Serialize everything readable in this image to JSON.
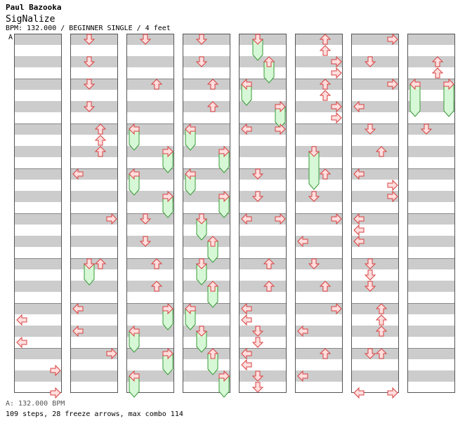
{
  "header": {
    "artist": "Paul Bazooka",
    "title": "SigNalize",
    "meta": "BPM: 132.000 / BEGINNER SINGLE / 4 feet",
    "marker": "A"
  },
  "footer": {
    "bpm_line": "A: 132.000 BPM",
    "stats_line": "109 steps, 28 freeze arrows, max combo 114"
  },
  "colors": {
    "stripe": "#cccccc",
    "tap": "#ffdede",
    "hold": "#d6f8d6"
  },
  "chart_data": {
    "type": "step_chart",
    "bpm": 132.0,
    "difficulty": "BEGINNER SINGLE",
    "feet": 4,
    "lanes": [
      "left",
      "down",
      "up",
      "right"
    ],
    "measures_per_column": 8,
    "columns": [
      {
        "notes": [
          {
            "m": 6,
            "b": 0.5,
            "d": "left"
          },
          {
            "m": 6,
            "b": 1.5,
            "d": "left"
          },
          {
            "m": 7,
            "b": 0.75,
            "d": "right"
          },
          {
            "m": 7,
            "b": 1.75,
            "d": "right"
          }
        ]
      },
      {
        "notes": [
          {
            "m": 0,
            "b": 0,
            "d": "down"
          },
          {
            "m": 0,
            "b": 1,
            "d": "down"
          },
          {
            "m": 1,
            "b": 0,
            "d": "down"
          },
          {
            "m": 1,
            "b": 1,
            "d": "down"
          },
          {
            "m": 2,
            "b": 0,
            "d": "up"
          },
          {
            "m": 2,
            "b": 0.5,
            "d": "up"
          },
          {
            "m": 2,
            "b": 1,
            "d": "up"
          },
          {
            "m": 3,
            "b": 0,
            "d": "left"
          },
          {
            "m": 4,
            "b": 0,
            "d": "right"
          },
          {
            "m": 5,
            "b": 0,
            "d": "down",
            "hold": 0.75
          },
          {
            "m": 5,
            "b": 0,
            "d": "up"
          },
          {
            "m": 6,
            "b": 0,
            "d": "left"
          },
          {
            "m": 6,
            "b": 1,
            "d": "left"
          },
          {
            "m": 7,
            "b": 0,
            "d": "right"
          }
        ]
      },
      {
        "notes": [
          {
            "m": 0,
            "b": 0,
            "d": "down"
          },
          {
            "m": 1,
            "b": 0,
            "d": "up"
          },
          {
            "m": 2,
            "b": 0,
            "d": "left",
            "hold": 0.75
          },
          {
            "m": 2,
            "b": 1,
            "d": "right",
            "hold": 0.75
          },
          {
            "m": 3,
            "b": 0,
            "d": "left",
            "hold": 0.75
          },
          {
            "m": 3,
            "b": 1,
            "d": "right",
            "hold": 0.75
          },
          {
            "m": 4,
            "b": 0,
            "d": "down"
          },
          {
            "m": 4,
            "b": 1,
            "d": "down"
          },
          {
            "m": 5,
            "b": 0,
            "d": "up"
          },
          {
            "m": 5,
            "b": 1,
            "d": "up"
          },
          {
            "m": 6,
            "b": 0,
            "d": "right",
            "hold": 0.75
          },
          {
            "m": 6,
            "b": 1,
            "d": "left",
            "hold": 0.75
          },
          {
            "m": 7,
            "b": 0,
            "d": "right",
            "hold": 0.75
          },
          {
            "m": 7,
            "b": 1,
            "d": "left",
            "hold": 0.75
          }
        ]
      },
      {
        "notes": [
          {
            "m": 0,
            "b": 0,
            "d": "down"
          },
          {
            "m": 0,
            "b": 1,
            "d": "down"
          },
          {
            "m": 1,
            "b": 0,
            "d": "up"
          },
          {
            "m": 1,
            "b": 1,
            "d": "up"
          },
          {
            "m": 2,
            "b": 0,
            "d": "left",
            "hold": 0.75
          },
          {
            "m": 2,
            "b": 1,
            "d": "right",
            "hold": 0.75
          },
          {
            "m": 3,
            "b": 0,
            "d": "left",
            "hold": 0.75
          },
          {
            "m": 3,
            "b": 1,
            "d": "right",
            "hold": 0.75
          },
          {
            "m": 4,
            "b": 0,
            "d": "down",
            "hold": 0.75
          },
          {
            "m": 4,
            "b": 1,
            "d": "up",
            "hold": 0.75
          },
          {
            "m": 5,
            "b": 0,
            "d": "down",
            "hold": 0.75
          },
          {
            "m": 5,
            "b": 1,
            "d": "up",
            "hold": 0.75
          },
          {
            "m": 6,
            "b": 0,
            "d": "left",
            "hold": 0.75
          },
          {
            "m": 6,
            "b": 1,
            "d": "down",
            "hold": 0.75
          },
          {
            "m": 7,
            "b": 0,
            "d": "up",
            "hold": 0.75
          },
          {
            "m": 7,
            "b": 1,
            "d": "right",
            "hold": 0.75
          }
        ]
      },
      {
        "notes": [
          {
            "m": 0,
            "b": 0,
            "d": "down",
            "hold": 0.75
          },
          {
            "m": 0,
            "b": 1,
            "d": "up",
            "hold": 0.75
          },
          {
            "m": 1,
            "b": 0,
            "d": "left",
            "hold": 0.75
          },
          {
            "m": 1,
            "b": 1,
            "d": "right",
            "hold": 0.75
          },
          {
            "m": 2,
            "b": 0,
            "d": "left"
          },
          {
            "m": 2,
            "b": 0,
            "d": "right"
          },
          {
            "m": 3,
            "b": 0,
            "d": "down"
          },
          {
            "m": 3,
            "b": 1,
            "d": "down"
          },
          {
            "m": 4,
            "b": 0,
            "d": "left"
          },
          {
            "m": 4,
            "b": 0,
            "d": "right"
          },
          {
            "m": 5,
            "b": 0,
            "d": "up"
          },
          {
            "m": 5,
            "b": 1,
            "d": "up"
          },
          {
            "m": 6,
            "b": 0,
            "d": "left"
          },
          {
            "m": 6,
            "b": 0.5,
            "d": "left"
          },
          {
            "m": 6,
            "b": 1,
            "d": "down"
          },
          {
            "m": 6,
            "b": 1.5,
            "d": "down"
          },
          {
            "m": 7,
            "b": 0,
            "d": "left"
          },
          {
            "m": 7,
            "b": 0.5,
            "d": "left"
          },
          {
            "m": 7,
            "b": 1,
            "d": "down"
          },
          {
            "m": 7,
            "b": 1.5,
            "d": "down"
          }
        ]
      },
      {
        "notes": [
          {
            "m": 0,
            "b": 0,
            "d": "up"
          },
          {
            "m": 0,
            "b": 0.5,
            "d": "up"
          },
          {
            "m": 0,
            "b": 1,
            "d": "right"
          },
          {
            "m": 0,
            "b": 1.5,
            "d": "right"
          },
          {
            "m": 1,
            "b": 0,
            "d": "up"
          },
          {
            "m": 1,
            "b": 0.5,
            "d": "up"
          },
          {
            "m": 1,
            "b": 1,
            "d": "right"
          },
          {
            "m": 1,
            "b": 1.5,
            "d": "right"
          },
          {
            "m": 2,
            "b": 1,
            "d": "down",
            "hold": 1.5
          },
          {
            "m": 3,
            "b": 0,
            "d": "up"
          },
          {
            "m": 3,
            "b": 1,
            "d": "down"
          },
          {
            "m": 4,
            "b": 0,
            "d": "right"
          },
          {
            "m": 4,
            "b": 1,
            "d": "left"
          },
          {
            "m": 5,
            "b": 0,
            "d": "down"
          },
          {
            "m": 5,
            "b": 1,
            "d": "up"
          },
          {
            "m": 6,
            "b": 0,
            "d": "right"
          },
          {
            "m": 6,
            "b": 1,
            "d": "left"
          },
          {
            "m": 7,
            "b": 0,
            "d": "up"
          },
          {
            "m": 7,
            "b": 1,
            "d": "left"
          }
        ]
      },
      {
        "notes": [
          {
            "m": 0,
            "b": 0,
            "d": "right"
          },
          {
            "m": 0,
            "b": 1,
            "d": "down"
          },
          {
            "m": 1,
            "b": 0,
            "d": "right"
          },
          {
            "m": 1,
            "b": 1,
            "d": "left"
          },
          {
            "m": 2,
            "b": 0,
            "d": "down"
          },
          {
            "m": 2,
            "b": 1,
            "d": "up"
          },
          {
            "m": 3,
            "b": 0,
            "d": "left"
          },
          {
            "m": 3,
            "b": 0.5,
            "d": "right"
          },
          {
            "m": 3,
            "b": 1,
            "d": "right"
          },
          {
            "m": 4,
            "b": 0,
            "d": "left"
          },
          {
            "m": 4,
            "b": 0.5,
            "d": "left"
          },
          {
            "m": 4,
            "b": 1,
            "d": "left"
          },
          {
            "m": 5,
            "b": 0,
            "d": "down"
          },
          {
            "m": 5,
            "b": 0.5,
            "d": "down"
          },
          {
            "m": 5,
            "b": 1,
            "d": "down"
          },
          {
            "m": 6,
            "b": 0,
            "d": "up"
          },
          {
            "m": 6,
            "b": 0.5,
            "d": "up"
          },
          {
            "m": 6,
            "b": 1,
            "d": "up"
          },
          {
            "m": 7,
            "b": 0,
            "d": "down"
          },
          {
            "m": 7,
            "b": 0,
            "d": "up"
          },
          {
            "m": 7,
            "b": 1.75,
            "d": "left"
          },
          {
            "m": 7,
            "b": 1.75,
            "d": "right"
          }
        ]
      },
      {
        "notes": [
          {
            "m": 0,
            "b": 1,
            "d": "up"
          },
          {
            "m": 0,
            "b": 1.5,
            "d": "up"
          },
          {
            "m": 1,
            "b": 0,
            "d": "left",
            "hold": 1.25
          },
          {
            "m": 1,
            "b": 0,
            "d": "right",
            "hold": 1.25
          },
          {
            "m": 2,
            "b": 0,
            "d": "down"
          }
        ]
      }
    ]
  }
}
